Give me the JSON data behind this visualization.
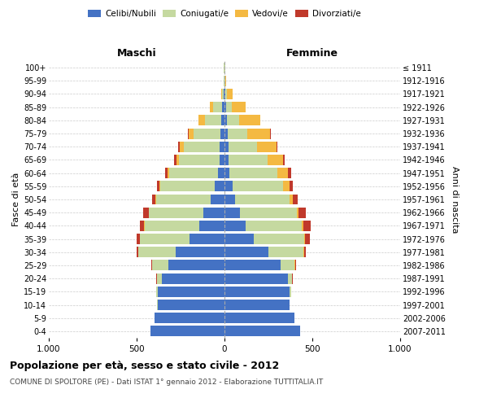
{
  "age_groups": [
    "0-4",
    "5-9",
    "10-14",
    "15-19",
    "20-24",
    "25-29",
    "30-34",
    "35-39",
    "40-44",
    "45-49",
    "50-54",
    "55-59",
    "60-64",
    "65-69",
    "70-74",
    "75-79",
    "80-84",
    "85-89",
    "90-94",
    "95-99",
    "100+"
  ],
  "birth_years": [
    "2007-2011",
    "2002-2006",
    "1997-2001",
    "1992-1996",
    "1987-1991",
    "1982-1986",
    "1977-1981",
    "1972-1976",
    "1967-1971",
    "1962-1966",
    "1957-1961",
    "1952-1956",
    "1947-1951",
    "1942-1946",
    "1937-1941",
    "1932-1936",
    "1927-1931",
    "1922-1926",
    "1917-1921",
    "1912-1916",
    "≤ 1911"
  ],
  "maschi": {
    "celibinubili": [
      420,
      400,
      380,
      380,
      355,
      320,
      280,
      200,
      145,
      120,
      80,
      55,
      35,
      30,
      30,
      25,
      20,
      15,
      5,
      2,
      2
    ],
    "coniugati": [
      0,
      0,
      2,
      8,
      30,
      90,
      210,
      280,
      310,
      310,
      310,
      310,
      280,
      230,
      200,
      150,
      90,
      50,
      10,
      2,
      2
    ],
    "vedovi": [
      0,
      0,
      0,
      0,
      0,
      0,
      0,
      2,
      2,
      2,
      2,
      5,
      10,
      15,
      25,
      30,
      40,
      20,
      5,
      0,
      0
    ],
    "divorziati": [
      0,
      0,
      0,
      0,
      2,
      5,
      10,
      20,
      25,
      30,
      20,
      15,
      15,
      10,
      10,
      5,
      0,
      0,
      0,
      0,
      0
    ]
  },
  "femmine": {
    "celibinubili": [
      430,
      400,
      370,
      370,
      360,
      320,
      250,
      165,
      120,
      90,
      60,
      45,
      30,
      25,
      25,
      20,
      15,
      10,
      5,
      2,
      2
    ],
    "coniugate": [
      0,
      0,
      2,
      8,
      25,
      80,
      200,
      290,
      320,
      320,
      310,
      290,
      270,
      220,
      160,
      110,
      70,
      30,
      10,
      2,
      2
    ],
    "vedove": [
      0,
      0,
      0,
      0,
      0,
      2,
      2,
      5,
      8,
      10,
      20,
      35,
      60,
      90,
      110,
      130,
      120,
      80,
      30,
      5,
      2
    ],
    "divorziate": [
      0,
      0,
      0,
      0,
      2,
      5,
      10,
      25,
      45,
      45,
      25,
      20,
      20,
      8,
      5,
      5,
      0,
      0,
      0,
      0,
      0
    ]
  },
  "color_celibinubili": "#4472c4",
  "color_coniugati": "#c5d9a0",
  "color_vedovi": "#f4b942",
  "color_divorziati": "#c0392b",
  "title": "Popolazione per età, sesso e stato civile - 2012",
  "subtitle": "COMUNE DI SPOLTORE (PE) - Dati ISTAT 1° gennaio 2012 - Elaborazione TUTTITALIA.IT",
  "xlabel_left": "Maschi",
  "xlabel_right": "Femmine",
  "ylabel_left": "Fasce di età",
  "ylabel_right": "Anni di nascita",
  "xlim": 1000,
  "background_color": "#ffffff",
  "grid_color": "#cccccc"
}
